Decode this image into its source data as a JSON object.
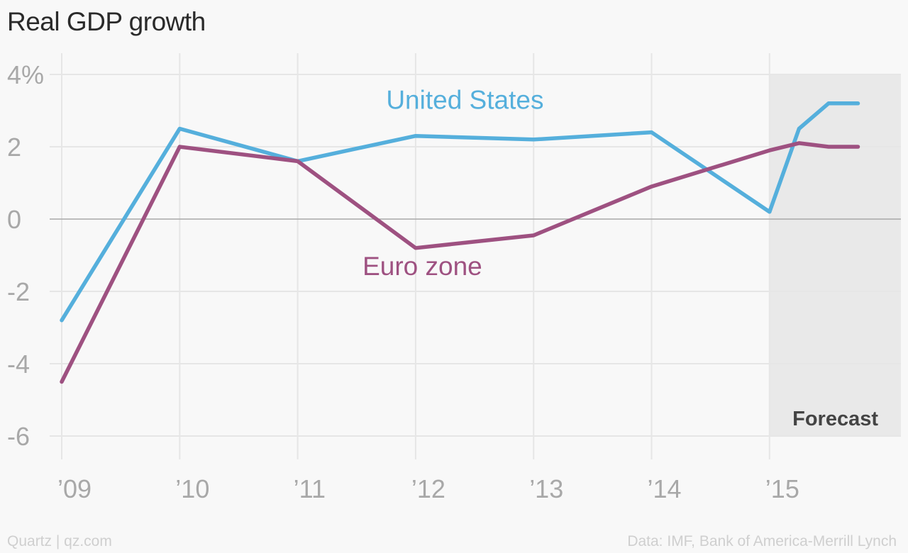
{
  "header": {
    "title": "Real GDP growth"
  },
  "footer": {
    "credit": "Quartz | qz.com",
    "source": "Data: IMF, Bank of America-Merrill Lynch"
  },
  "colors": {
    "background": "#f8f8f8",
    "united_states": "#55afdc",
    "euro_zone": "#9e5181",
    "grid": "#e6e6e6",
    "zero_line": "#a8a8a8",
    "axis_text": "#a8a8a8",
    "forecast_band": "#e9e9e9",
    "forecast_text": "#444444"
  },
  "chart_data": {
    "type": "line",
    "title": "Real GDP growth",
    "xlabel": "",
    "ylabel": "",
    "xlim": [
      2009,
      2015.95
    ],
    "ylim": [
      -6,
      4
    ],
    "yticks": [
      4,
      2,
      0,
      -2,
      -4,
      -6
    ],
    "ytick_labels": [
      "4%",
      "2",
      "0",
      "-2",
      "-4",
      "-6"
    ],
    "xticks": [
      2009,
      2010,
      2011,
      2012,
      2013,
      2014,
      2015
    ],
    "xtick_labels": [
      "’09",
      "’10",
      "’11",
      "’12",
      "’13",
      "’14",
      "’15"
    ],
    "grid": true,
    "forecast_region": {
      "x_start": 2015,
      "label": "Forecast"
    },
    "series": [
      {
        "name": "United States",
        "label_at": {
          "x": 2011.75,
          "y": 3.05
        },
        "points": [
          [
            2009,
            -2.8
          ],
          [
            2010,
            2.5
          ],
          [
            2011,
            1.6
          ],
          [
            2012,
            2.3
          ],
          [
            2013,
            2.2
          ],
          [
            2014,
            2.4
          ],
          [
            2015,
            0.2
          ],
          [
            2015.25,
            2.5
          ],
          [
            2015.5,
            3.2
          ],
          [
            2015.75,
            3.2
          ]
        ]
      },
      {
        "name": "Euro zone",
        "label_at": {
          "x": 2011.55,
          "y": -1.55
        },
        "points": [
          [
            2009,
            -4.5
          ],
          [
            2010,
            2.0
          ],
          [
            2011,
            1.6
          ],
          [
            2012,
            -0.8
          ],
          [
            2013,
            -0.45
          ],
          [
            2014,
            0.9
          ],
          [
            2015,
            1.9
          ],
          [
            2015.25,
            2.1
          ],
          [
            2015.5,
            2.0
          ],
          [
            2015.75,
            2.0
          ]
        ]
      }
    ]
  }
}
